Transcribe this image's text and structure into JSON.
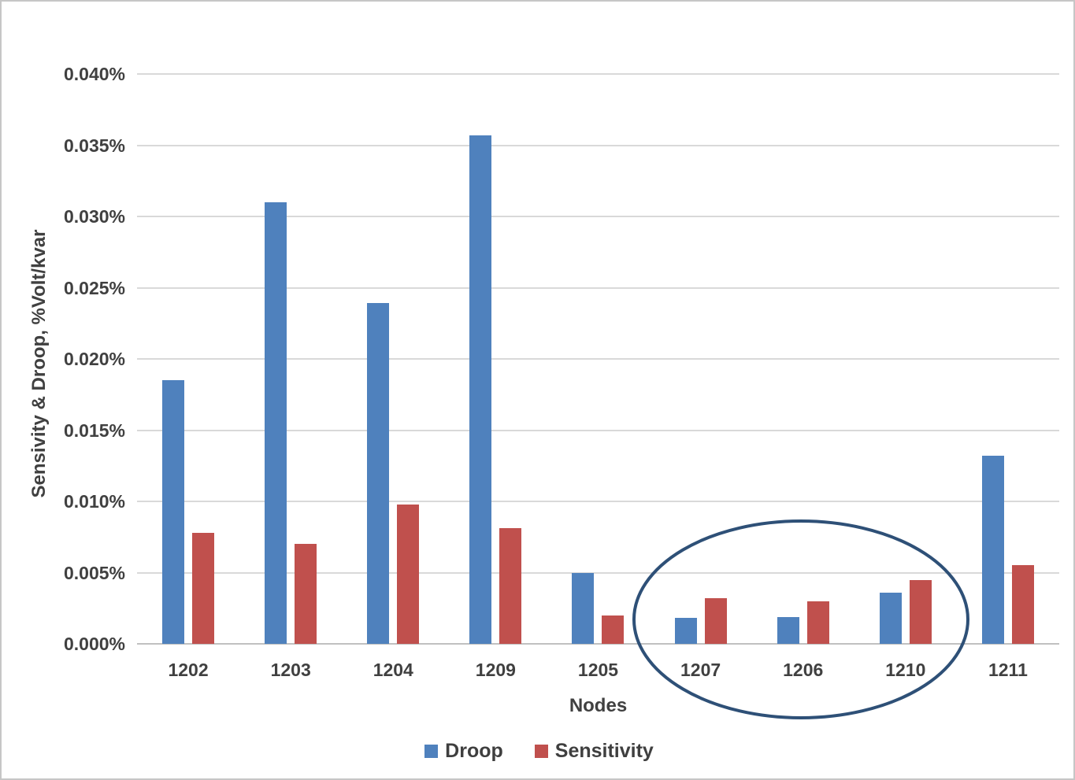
{
  "chart_data": {
    "type": "bar",
    "title": "",
    "xlabel": "Nodes",
    "ylabel": "Sensivity & Droop, %Volt/kvar",
    "categories": [
      "1202",
      "1203",
      "1204",
      "1209",
      "1205",
      "1207",
      "1206",
      "1210",
      "1211"
    ],
    "series": [
      {
        "name": "Droop",
        "color": "#4F81BD",
        "values": [
          0.0185,
          0.031,
          0.0239,
          0.0357,
          0.005,
          0.0018,
          0.0019,
          0.0036,
          0.0132
        ]
      },
      {
        "name": "Sensitivity",
        "color": "#C0504D",
        "values": [
          0.0078,
          0.007,
          0.0098,
          0.0081,
          0.002,
          0.0032,
          0.003,
          0.0045,
          0.0055
        ]
      }
    ],
    "y_axis": {
      "min": 0,
      "max": 0.04,
      "step": 0.005,
      "unit": "%",
      "tick_labels": [
        "0.000%",
        "0.005%",
        "0.010%",
        "0.015%",
        "0.020%",
        "0.025%",
        "0.030%",
        "0.035%",
        "0.040%"
      ]
    },
    "grid": true,
    "legend": {
      "position": "bottom",
      "entries": [
        "Droop",
        "Sensitivity"
      ]
    },
    "annotation": {
      "type": "ellipse",
      "around_categories": [
        "1207",
        "1206",
        "1210"
      ],
      "color": "#2E5077"
    },
    "colors": {
      "text": "#404040",
      "gridline": "#D9D9D9",
      "axis_line": "#C0C0C0",
      "background": "#FFFFFF",
      "border": "#C6C6C6"
    }
  }
}
